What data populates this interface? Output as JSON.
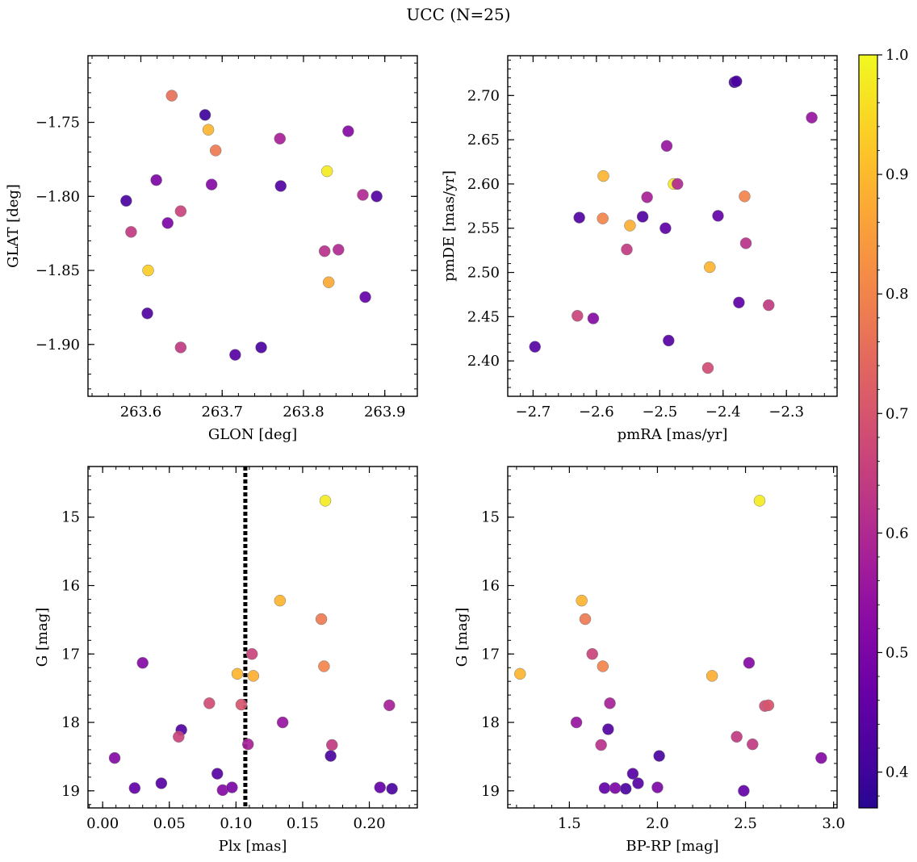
{
  "figure": {
    "title": "UCC (N=25)"
  },
  "colorbar": {
    "ticks": [
      "0.4",
      "0.5",
      "0.6",
      "0.7",
      "0.8",
      "0.9",
      "1.0"
    ],
    "tick_values": [
      0.4,
      0.5,
      0.6,
      0.7,
      0.8,
      0.9,
      1.0
    ],
    "range": [
      0.37,
      1.0
    ],
    "colormap": "plasma"
  },
  "chart_data": [
    {
      "type": "scatter",
      "name": "glon-glat",
      "xlabel": "GLON [deg]",
      "ylabel": "GLAT [deg]",
      "xlim": [
        263.535,
        263.94
      ],
      "ylim": [
        -1.935,
        -1.705
      ],
      "y_inverted": false,
      "xticks": [
        263.6,
        263.7,
        263.8,
        263.9
      ],
      "xtick_labels": [
        "263.6",
        "263.7",
        "263.8",
        "263.9"
      ],
      "yticks": [
        -1.75,
        -1.8,
        -1.85,
        -1.9
      ],
      "ytick_labels": [
        "−1.75",
        "−1.80",
        "−1.85",
        "−1.90"
      ],
      "x": [
        263.638,
        263.679,
        263.683,
        263.692,
        263.582,
        263.619,
        263.633,
        263.649,
        263.588,
        263.609,
        263.608,
        263.649,
        263.687,
        263.716,
        263.748,
        263.771,
        263.772,
        263.829,
        263.855,
        263.873,
        263.89,
        263.826,
        263.843,
        263.831,
        263.876
      ],
      "y": [
        -1.732,
        -1.745,
        -1.755,
        -1.769,
        -1.803,
        -1.789,
        -1.818,
        -1.81,
        -1.824,
        -1.85,
        -1.879,
        -1.902,
        -1.792,
        -1.907,
        -1.902,
        -1.761,
        -1.793,
        -1.783,
        -1.756,
        -1.799,
        -1.8,
        -1.837,
        -1.836,
        -1.858,
        -1.868
      ],
      "probability": [
        0.76,
        0.4,
        0.89,
        0.78,
        0.42,
        0.5,
        0.5,
        0.66,
        0.64,
        0.93,
        0.43,
        0.64,
        0.52,
        0.44,
        0.42,
        0.58,
        0.43,
        0.98,
        0.52,
        0.6,
        0.43,
        0.62,
        0.6,
        0.87,
        0.46
      ]
    },
    {
      "type": "scatter",
      "name": "pmra-pmde",
      "xlabel": "pmRA [mas/yr]",
      "ylabel": "pmDE [mas/yr]",
      "xlim": [
        -2.74,
        -2.22
      ],
      "ylim": [
        2.36,
        2.745
      ],
      "y_inverted": false,
      "xticks": [
        -2.7,
        -2.6,
        -2.5,
        -2.4,
        -2.3
      ],
      "xtick_labels": [
        "−2.7",
        "−2.6",
        "−2.5",
        "−2.4",
        "−2.3"
      ],
      "yticks": [
        2.4,
        2.45,
        2.5,
        2.55,
        2.6,
        2.65,
        2.7
      ],
      "ytick_labels": [
        "2.40",
        "2.45",
        "2.50",
        "2.55",
        "2.60",
        "2.65",
        "2.70"
      ],
      "x": [
        -2.382,
        -2.379,
        -2.26,
        -2.489,
        -2.589,
        -2.478,
        -2.472,
        -2.627,
        -2.59,
        -2.527,
        -2.52,
        -2.366,
        -2.491,
        -2.408,
        -2.547,
        -2.552,
        -2.364,
        -2.421,
        -2.375,
        -2.328,
        -2.63,
        -2.605,
        -2.697,
        -2.486,
        -2.424
      ],
      "y": [
        2.715,
        2.716,
        2.675,
        2.643,
        2.609,
        2.6,
        2.6,
        2.562,
        2.561,
        2.563,
        2.585,
        2.586,
        2.55,
        2.564,
        2.553,
        2.526,
        2.533,
        2.506,
        2.466,
        2.463,
        2.451,
        2.448,
        2.416,
        2.423,
        2.392
      ],
      "probability": [
        0.4,
        0.42,
        0.55,
        0.55,
        0.89,
        0.98,
        0.6,
        0.43,
        0.8,
        0.43,
        0.58,
        0.8,
        0.45,
        0.46,
        0.88,
        0.64,
        0.62,
        0.89,
        0.45,
        0.64,
        0.66,
        0.52,
        0.44,
        0.44,
        0.68
      ]
    },
    {
      "type": "scatter",
      "name": "plx-g",
      "xlabel": "Plx [mas]",
      "ylabel": "G [mag]",
      "xlim": [
        -0.011,
        0.236
      ],
      "ylim": [
        19.25,
        14.26
      ],
      "y_inverted": true,
      "vline": 0.107,
      "xticks": [
        0.0,
        0.05,
        0.1,
        0.15,
        0.2
      ],
      "xtick_labels": [
        "0.00",
        "0.05",
        "0.10",
        "0.15",
        "0.20"
      ],
      "yticks": [
        15,
        16,
        17,
        18,
        19
      ],
      "ytick_labels": [
        "15",
        "16",
        "17",
        "18",
        "19"
      ],
      "x": [
        0.167,
        0.133,
        0.164,
        0.166,
        0.03,
        0.112,
        0.101,
        0.113,
        0.08,
        0.104,
        0.135,
        0.215,
        0.059,
        0.057,
        0.109,
        0.172,
        0.171,
        0.009,
        0.086,
        0.024,
        0.044,
        0.09,
        0.097,
        0.208,
        0.217
      ],
      "y": [
        14.76,
        16.22,
        16.49,
        17.18,
        17.13,
        17.0,
        17.29,
        17.32,
        17.72,
        17.74,
        18.0,
        17.75,
        18.11,
        18.21,
        18.32,
        18.33,
        18.49,
        18.52,
        18.75,
        18.96,
        18.89,
        18.99,
        18.95,
        18.95,
        18.97
      ],
      "probability": [
        0.98,
        0.89,
        0.78,
        0.8,
        0.52,
        0.66,
        0.89,
        0.88,
        0.68,
        0.7,
        0.55,
        0.58,
        0.43,
        0.66,
        0.58,
        0.64,
        0.42,
        0.52,
        0.44,
        0.46,
        0.44,
        0.52,
        0.5,
        0.46,
        0.42
      ]
    },
    {
      "type": "scatter",
      "name": "bprp-g",
      "xlabel": "BP-RP [mag]",
      "ylabel": "G [mag]",
      "xlim": [
        1.15,
        3.02
      ],
      "ylim": [
        19.25,
        14.26
      ],
      "y_inverted": true,
      "xticks": [
        1.5,
        2.0,
        2.5,
        3.0
      ],
      "xtick_labels": [
        "1.5",
        "2.0",
        "2.5",
        "3.0"
      ],
      "yticks": [
        15,
        16,
        17,
        18,
        19
      ],
      "ytick_labels": [
        "15",
        "16",
        "17",
        "18",
        "19"
      ],
      "x": [
        2.58,
        1.57,
        1.59,
        1.63,
        1.69,
        2.52,
        1.22,
        2.31,
        1.73,
        2.61,
        2.63,
        1.54,
        1.72,
        2.45,
        2.54,
        1.68,
        2.01,
        2.93,
        1.86,
        1.7,
        1.76,
        1.89,
        1.82,
        2.0,
        2.49
      ],
      "y": [
        14.76,
        16.22,
        16.49,
        17.0,
        17.18,
        17.13,
        17.29,
        17.32,
        17.72,
        17.76,
        17.75,
        18.0,
        18.1,
        18.21,
        18.32,
        18.33,
        18.49,
        18.52,
        18.75,
        18.96,
        18.96,
        18.89,
        18.97,
        18.95,
        19.0
      ],
      "probability": [
        0.98,
        0.89,
        0.78,
        0.66,
        0.8,
        0.52,
        0.89,
        0.88,
        0.58,
        0.68,
        0.7,
        0.55,
        0.43,
        0.64,
        0.64,
        0.62,
        0.42,
        0.52,
        0.44,
        0.46,
        0.5,
        0.44,
        0.42,
        0.5,
        0.46
      ]
    }
  ]
}
